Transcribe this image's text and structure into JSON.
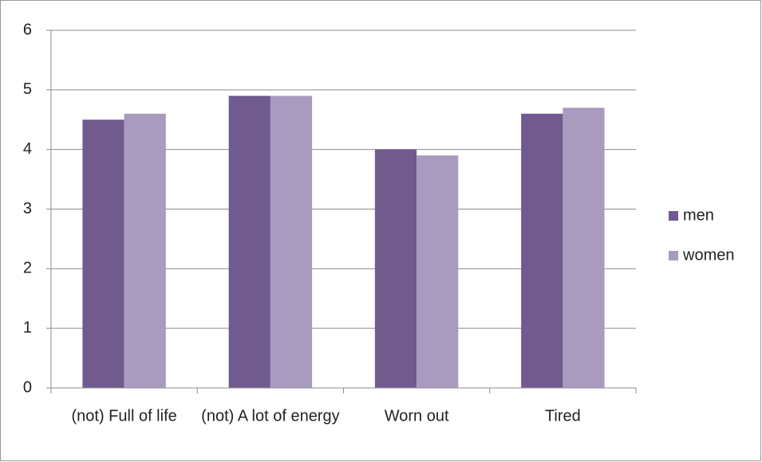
{
  "chart_data": {
    "type": "bar",
    "categories": [
      "(not) Full of life",
      "(not) A lot of energy",
      "Worn out",
      "Tired"
    ],
    "series": [
      {
        "name": "men",
        "color": "#705a8e",
        "values": [
          4.5,
          4.9,
          4.0,
          4.6
        ]
      },
      {
        "name": "women",
        "color": "#a89bbf",
        "values": [
          4.6,
          4.9,
          3.9,
          4.7
        ]
      }
    ],
    "ylim": [
      0,
      6
    ],
    "yticks": [
      0,
      1,
      2,
      3,
      4,
      5,
      6
    ],
    "grid": true,
    "legend": "right"
  }
}
